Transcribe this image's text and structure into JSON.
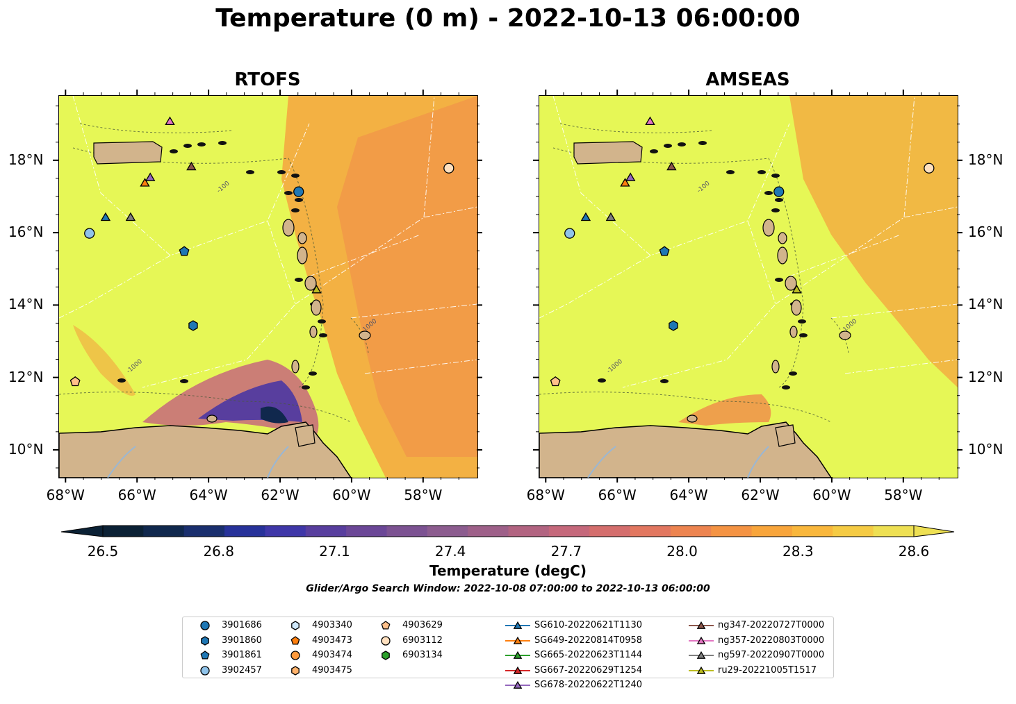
{
  "title": "Temperature (0 m) - 2022-10-13 06:00:00",
  "panels": [
    {
      "title": "RTOFS"
    },
    {
      "title": "AMSEAS"
    }
  ],
  "lon_ticks": [
    "68°W",
    "66°W",
    "64°W",
    "62°W",
    "60°W",
    "58°W"
  ],
  "lat_ticks": [
    "18°N",
    "16°N",
    "14°N",
    "12°N",
    "10°N"
  ],
  "extent": {
    "lon_min": -68.2,
    "lon_max": -56.5,
    "lat_min": 9.25,
    "lat_max": 19.8
  },
  "bathymetry_labels": [
    "-100",
    "-1000",
    "1000"
  ],
  "colorbar": {
    "label": "Temperature (degC)",
    "ticks": [
      "26.5",
      "26.8",
      "27.1",
      "27.4",
      "27.7",
      "28.0",
      "28.3",
      "28.6"
    ],
    "min": 26.5,
    "max": 28.6,
    "extend": "both",
    "colors": [
      "#0b2135",
      "#10284d",
      "#1a2f6e",
      "#27329a",
      "#3f37a8",
      "#583e9e",
      "#6b4797",
      "#7c5292",
      "#8c5c8f",
      "#9e6089",
      "#b26481",
      "#c5687b",
      "#d46e6d",
      "#e27760",
      "#ed8450",
      "#f49343",
      "#f8a53b",
      "#f9b73c",
      "#f5cb44",
      "#eee053"
    ]
  },
  "search_window": "Glider/Argo Search Window: 2022-10-08 07:00:00 to 2022-10-13 06:00:00",
  "colors": {
    "land": "#d2b48c",
    "ocean_warm": "#e6f756",
    "ocean_orange": "#f4a43f",
    "cold": "#3b2f8f"
  },
  "legend": [
    {
      "label": "3901686",
      "marker": "circle",
      "color": "#1f77b4"
    },
    {
      "label": "3901860",
      "marker": "hexagon",
      "color": "#1f77b4"
    },
    {
      "label": "3901861",
      "marker": "pentagon",
      "color": "#1f77b4"
    },
    {
      "label": "3902457",
      "marker": "circle",
      "color": "#8fc3ea"
    },
    {
      "label": "4903340",
      "marker": "hexagon",
      "color": "#cfe8fb"
    },
    {
      "label": "4903473",
      "marker": "pentagon",
      "color": "#ff7f0e"
    },
    {
      "label": "4903474",
      "marker": "circle",
      "color": "#ff9a3c"
    },
    {
      "label": "4903475",
      "marker": "hexagon",
      "color": "#ffb26b"
    },
    {
      "label": "4903629",
      "marker": "pentagon",
      "color": "#ffc08a"
    },
    {
      "label": "6903112",
      "marker": "circle",
      "color": "#ffe0bf"
    },
    {
      "label": "6903134",
      "marker": "hexagon",
      "color": "#2ca02c"
    },
    {
      "label": "SG610-20220621T1130",
      "marker": "triangle",
      "color": "#1f77b4"
    },
    {
      "label": "SG649-20220814T0958",
      "marker": "triangle",
      "color": "#ff7f0e"
    },
    {
      "label": "SG665-20220623T1144",
      "marker": "triangle",
      "color": "#2ca02c"
    },
    {
      "label": "SG667-20220629T1254",
      "marker": "triangle",
      "color": "#d62728"
    },
    {
      "label": "SG678-20220622T1240",
      "marker": "triangle",
      "color": "#9467bd"
    },
    {
      "label": "ng347-20220727T0000",
      "marker": "triangle",
      "color": "#8c564b"
    },
    {
      "label": "ng357-20220803T0000",
      "marker": "triangle",
      "color": "#e377c2"
    },
    {
      "label": "ng597-20220907T0000",
      "marker": "triangle",
      "color": "#7f7f7f"
    },
    {
      "label": "ru29-20221005T1517",
      "marker": "triangle",
      "color": "#bcbd22"
    }
  ],
  "observations": [
    {
      "id": "3901686",
      "lon": -61.5,
      "lat": 17.15
    },
    {
      "id": "3901860",
      "lon": -64.45,
      "lat": 13.45
    },
    {
      "id": "3901861",
      "lon": -64.7,
      "lat": 15.5
    },
    {
      "id": "3902457",
      "lon": -67.35,
      "lat": 16.0
    },
    {
      "id": "4903629",
      "lon": -67.75,
      "lat": 11.9
    },
    {
      "id": "6903112",
      "lon": -57.3,
      "lat": 17.8
    },
    {
      "id": "SG610-20220621T1130",
      "lon": -66.9,
      "lat": 16.45
    },
    {
      "id": "SG649-20220814T0958",
      "lon": -65.8,
      "lat": 17.4
    },
    {
      "id": "SG678-20220622T1240",
      "lon": -65.65,
      "lat": 17.55
    },
    {
      "id": "ng347-20220727T0000",
      "lon": -64.5,
      "lat": 17.85
    },
    {
      "id": "ng357-20220803T0000",
      "lon": -65.1,
      "lat": 19.1
    },
    {
      "id": "ng597-20220907T0000",
      "lon": -66.2,
      "lat": 16.45
    },
    {
      "id": "ru29-20221005T1517",
      "lon": -61.0,
      "lat": 14.45
    }
  ]
}
